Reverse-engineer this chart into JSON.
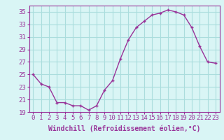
{
  "x": [
    0,
    1,
    2,
    3,
    4,
    5,
    6,
    7,
    8,
    9,
    10,
    11,
    12,
    13,
    14,
    15,
    16,
    17,
    18,
    19,
    20,
    21,
    22,
    23
  ],
  "y": [
    25.0,
    23.5,
    23.0,
    20.5,
    20.5,
    20.0,
    20.0,
    19.3,
    20.0,
    22.5,
    24.0,
    27.5,
    30.5,
    32.5,
    33.5,
    34.5,
    34.8,
    35.3,
    35.0,
    34.5,
    32.5,
    29.5,
    27.0,
    26.8
  ],
  "line_color": "#993399",
  "marker": "+",
  "marker_size": 3,
  "background_color": "#d9f5f5",
  "grid_color": "#aadddd",
  "xlabel": "Windchill (Refroidissement éolien,°C)",
  "ylabel": "",
  "title": "",
  "ylim": [
    19,
    36
  ],
  "xlim": [
    -0.5,
    23.5
  ],
  "yticks": [
    19,
    21,
    23,
    25,
    27,
    29,
    31,
    33,
    35
  ],
  "xtick_labels": [
    "0",
    "1",
    "2",
    "3",
    "4",
    "5",
    "6",
    "7",
    "8",
    "9",
    "10",
    "11",
    "12",
    "13",
    "14",
    "15",
    "16",
    "17",
    "18",
    "19",
    "20",
    "21",
    "22",
    "23"
  ],
  "tick_color": "#993399",
  "label_color": "#993399",
  "font_size": 6.5,
  "xlabel_fontsize": 7.0
}
